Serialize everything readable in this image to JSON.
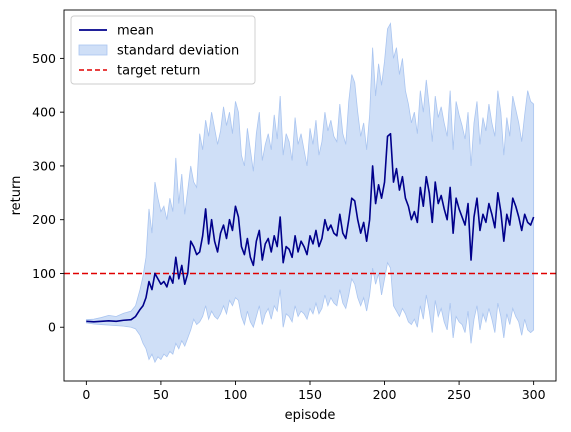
{
  "chart_data": {
    "type": "line",
    "title": "",
    "xlabel": "episode",
    "ylabel": "return",
    "xlim": [
      -15,
      315
    ],
    "ylim": [
      -100,
      590
    ],
    "xticks": [
      0,
      50,
      100,
      150,
      200,
      250,
      300
    ],
    "yticks": [
      0,
      100,
      200,
      300,
      400,
      500
    ],
    "grid": false,
    "legend_position": "top-left",
    "colors": {
      "mean": "#00008b",
      "band_fill": "#cfdff7",
      "band_edge": "#aac5f0",
      "target": "#e00000",
      "axis": "#000000"
    },
    "series": [
      {
        "name": "mean",
        "style": "solid-line",
        "x": [
          0,
          5,
          10,
          15,
          20,
          25,
          30,
          33,
          36,
          38,
          40,
          42,
          44,
          46,
          48,
          50,
          52,
          54,
          56,
          58,
          60,
          62,
          64,
          66,
          68,
          70,
          72,
          74,
          76,
          78,
          80,
          82,
          84,
          86,
          88,
          90,
          92,
          94,
          96,
          98,
          100,
          102,
          104,
          106,
          108,
          110,
          112,
          114,
          116,
          118,
          120,
          122,
          124,
          126,
          128,
          130,
          132,
          134,
          136,
          138,
          140,
          142,
          144,
          146,
          148,
          150,
          152,
          154,
          156,
          158,
          160,
          162,
          164,
          166,
          168,
          170,
          172,
          174,
          176,
          178,
          180,
          182,
          184,
          186,
          188,
          190,
          192,
          194,
          196,
          198,
          200,
          202,
          204,
          206,
          208,
          210,
          212,
          214,
          216,
          218,
          220,
          222,
          224,
          226,
          228,
          230,
          232,
          234,
          236,
          238,
          240,
          242,
          244,
          246,
          248,
          250,
          252,
          254,
          256,
          258,
          260,
          262,
          264,
          266,
          268,
          270,
          272,
          274,
          276,
          278,
          280,
          282,
          284,
          286,
          288,
          290,
          292,
          294,
          296,
          298,
          300
        ],
        "values": [
          11,
          10,
          11,
          12,
          11,
          13,
          14,
          20,
          33,
          40,
          55,
          85,
          70,
          100,
          90,
          80,
          85,
          75,
          95,
          82,
          130,
          90,
          115,
          80,
          100,
          160,
          150,
          135,
          140,
          170,
          220,
          155,
          200,
          160,
          140,
          175,
          190,
          165,
          200,
          180,
          225,
          205,
          150,
          135,
          165,
          130,
          115,
          160,
          180,
          125,
          155,
          165,
          140,
          170,
          150,
          205,
          120,
          150,
          145,
          130,
          170,
          140,
          160,
          150,
          135,
          170,
          155,
          180,
          150,
          165,
          200,
          180,
          190,
          175,
          170,
          210,
          175,
          165,
          200,
          240,
          235,
          200,
          175,
          195,
          160,
          200,
          300,
          230,
          265,
          240,
          270,
          355,
          360,
          270,
          295,
          255,
          280,
          240,
          225,
          200,
          215,
          195,
          260,
          225,
          280,
          250,
          195,
          270,
          230,
          245,
          220,
          200,
          260,
          175,
          240,
          220,
          205,
          190,
          230,
          125,
          205,
          240,
          180,
          210,
          195,
          230,
          210,
          185,
          250,
          215,
          160,
          210,
          190,
          240,
          225,
          205,
          180,
          210,
          195,
          190,
          205
        ]
      },
      {
        "name": "standard deviation",
        "style": "band",
        "x": [
          0,
          5,
          10,
          15,
          20,
          25,
          30,
          33,
          36,
          38,
          40,
          42,
          44,
          46,
          48,
          50,
          52,
          54,
          56,
          58,
          60,
          62,
          64,
          66,
          68,
          70,
          72,
          74,
          76,
          78,
          80,
          82,
          84,
          86,
          88,
          90,
          92,
          94,
          96,
          98,
          100,
          102,
          104,
          106,
          108,
          110,
          112,
          114,
          116,
          118,
          120,
          122,
          124,
          126,
          128,
          130,
          132,
          134,
          136,
          138,
          140,
          142,
          144,
          146,
          148,
          150,
          152,
          154,
          156,
          158,
          160,
          162,
          164,
          166,
          168,
          170,
          172,
          174,
          176,
          178,
          180,
          182,
          184,
          186,
          188,
          190,
          192,
          194,
          196,
          198,
          200,
          202,
          204,
          206,
          208,
          210,
          212,
          214,
          216,
          218,
          220,
          222,
          224,
          226,
          228,
          230,
          232,
          234,
          236,
          238,
          240,
          242,
          244,
          246,
          248,
          250,
          252,
          254,
          256,
          258,
          260,
          262,
          264,
          266,
          268,
          270,
          272,
          274,
          276,
          278,
          280,
          282,
          284,
          286,
          288,
          290,
          292,
          294,
          296,
          298,
          300
        ],
        "upper": [
          14,
          15,
          18,
          22,
          20,
          26,
          30,
          40,
          70,
          95,
          130,
          220,
          175,
          270,
          240,
          215,
          225,
          200,
          240,
          215,
          315,
          230,
          285,
          210,
          255,
          300,
          270,
          260,
          360,
          330,
          385,
          355,
          400,
          370,
          340,
          365,
          410,
          375,
          400,
          360,
          420,
          400,
          320,
          300,
          370,
          330,
          290,
          360,
          400,
          310,
          340,
          360,
          330,
          395,
          350,
          430,
          320,
          360,
          345,
          310,
          390,
          340,
          360,
          330,
          300,
          370,
          340,
          385,
          320,
          345,
          400,
          365,
          385,
          355,
          345,
          415,
          360,
          340,
          420,
          470,
          455,
          400,
          355,
          380,
          330,
          395,
          520,
          430,
          490,
          450,
          495,
          555,
          565,
          500,
          520,
          470,
          500,
          440,
          415,
          380,
          400,
          360,
          440,
          400,
          460,
          410,
          345,
          430,
          390,
          410,
          380,
          355,
          440,
          330,
          420,
          395,
          375,
          350,
          400,
          300,
          380,
          420,
          340,
          390,
          365,
          415,
          380,
          355,
          440,
          400,
          320,
          390,
          355,
          430,
          405,
          380,
          345,
          395,
          440,
          420,
          415
        ],
        "lower": [
          8,
          6,
          5,
          4,
          3,
          2,
          0,
          -3,
          -15,
          -30,
          -40,
          -60,
          -50,
          -65,
          -55,
          -60,
          -50,
          -55,
          -45,
          -50,
          -30,
          -40,
          -25,
          -35,
          -20,
          -5,
          15,
          5,
          10,
          20,
          40,
          15,
          30,
          20,
          15,
          25,
          40,
          25,
          50,
          40,
          55,
          50,
          20,
          5,
          30,
          10,
          0,
          20,
          40,
          5,
          25,
          35,
          15,
          40,
          30,
          70,
          0,
          25,
          20,
          10,
          40,
          20,
          30,
          25,
          15,
          35,
          25,
          45,
          25,
          35,
          60,
          40,
          55,
          45,
          40,
          70,
          45,
          35,
          60,
          90,
          80,
          55,
          40,
          55,
          30,
          60,
          110,
          80,
          100,
          60,
          90,
          120,
          110,
          40,
          30,
          20,
          35,
          25,
          10,
          5,
          15,
          0,
          40,
          15,
          60,
          30,
          -10,
          50,
          20,
          35,
          10,
          -5,
          45,
          -20,
          20,
          10,
          5,
          -10,
          30,
          -30,
          15,
          40,
          -5,
          25,
          10,
          35,
          15,
          -10,
          45,
          20,
          -20,
          25,
          5,
          35,
          20,
          10,
          -15,
          15,
          -5,
          -10,
          -5
        ]
      },
      {
        "name": "target return",
        "style": "dashed-line",
        "y": 100
      }
    ]
  }
}
